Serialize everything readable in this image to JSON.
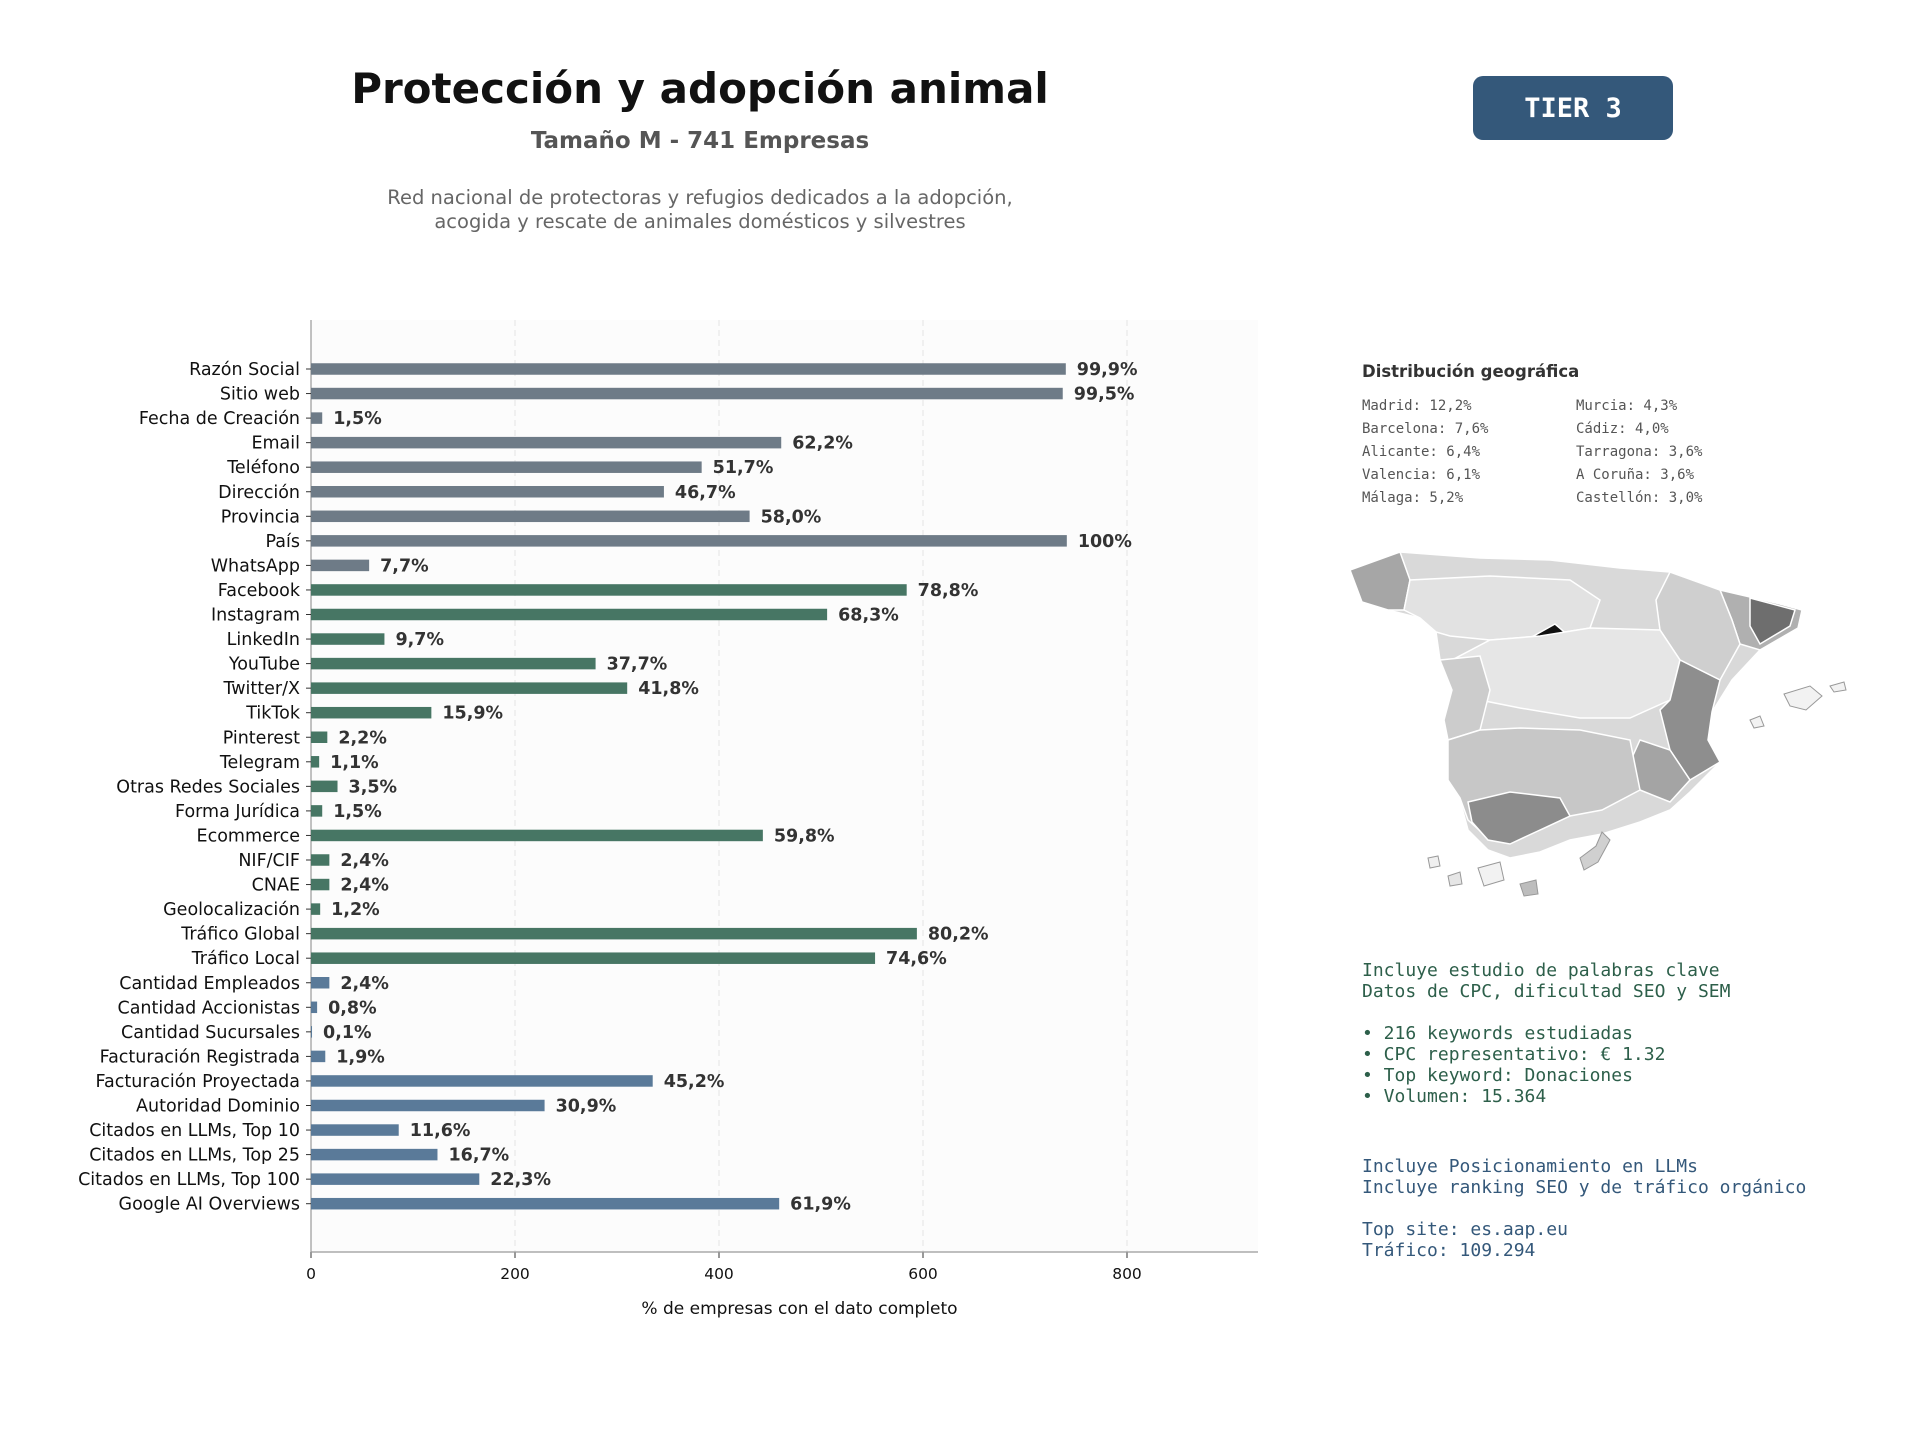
{
  "header": {
    "title": "Protección y adopción animal",
    "subtitle": "Tamaño M - 741 Empresas",
    "description_line1": "Red nacional de protectoras y refugios dedicados a la adopción,",
    "description_line2": "acogida y rescate de animales domésticos y silvestres",
    "tier": "TIER 3"
  },
  "colors": {
    "basic": "#6e7b87",
    "social": "#477664",
    "business": "#5a7a99",
    "tier_bg": "#34587a"
  },
  "chart_data": {
    "type": "bar",
    "orientation": "horizontal",
    "xlabel": "% de empresas con el dato completo",
    "xlim": [
      0,
      925
    ],
    "xticks": [
      0,
      200,
      400,
      600,
      800
    ],
    "grid": "vertical dashed",
    "categories": [
      "Razón Social",
      "Sitio web",
      "Fecha de Creación",
      "Email",
      "Teléfono",
      "Dirección",
      "Provincia",
      "País",
      "WhatsApp",
      "Facebook",
      "Instagram",
      "LinkedIn",
      "YouTube",
      "Twitter/X",
      "TikTok",
      "Pinterest",
      "Telegram",
      "Otras Redes Sociales",
      "Forma Jurídica",
      "Ecommerce",
      "NIF/CIF",
      "CNAE",
      "Geolocalización",
      "Tráfico Global",
      "Tráfico Local",
      "Cantidad Empleados",
      "Cantidad Accionistas",
      "Cantidad Sucursales",
      "Facturación Registrada",
      "Facturación Proyectada",
      "Autoridad Dominio",
      "Citados en LLMs, Top 10",
      "Citados en LLMs, Top 25",
      "Citados en LLMs, Top 100",
      "Google AI Overviews"
    ],
    "values": [
      740,
      737,
      11,
      461,
      383,
      346,
      430,
      741,
      57,
      584,
      506,
      72,
      279,
      310,
      118,
      16,
      8,
      26,
      11,
      443,
      18,
      18,
      9,
      594,
      553,
      18,
      6,
      1,
      14,
      335,
      229,
      86,
      124,
      165,
      459
    ],
    "labels": [
      "99,9%",
      "99,5%",
      "1,5%",
      "62,2%",
      "51,7%",
      "46,7%",
      "58,0%",
      "100%",
      "7,7%",
      "78,8%",
      "68,3%",
      "9,7%",
      "37,7%",
      "41,8%",
      "15,9%",
      "2,2%",
      "1,1%",
      "3,5%",
      "1,5%",
      "59,8%",
      "2,4%",
      "2,4%",
      "1,2%",
      "80,2%",
      "74,6%",
      "2,4%",
      "0,8%",
      "0,1%",
      "1,9%",
      "45,2%",
      "30,9%",
      "11,6%",
      "16,7%",
      "22,3%",
      "61,9%"
    ],
    "groups": [
      "basic",
      "basic",
      "basic",
      "basic",
      "basic",
      "basic",
      "basic",
      "basic",
      "basic",
      "social",
      "social",
      "social",
      "social",
      "social",
      "social",
      "social",
      "social",
      "social",
      "social",
      "social",
      "social",
      "social",
      "social",
      "social",
      "social",
      "business",
      "business",
      "business",
      "business",
      "business",
      "business",
      "business",
      "business",
      "business",
      "business"
    ]
  },
  "geo": {
    "title": "Distribución geográfica",
    "items": [
      "Madrid: 12,2%",
      "Murcia: 4,3%",
      "Barcelona: 7,6%",
      "Cádiz: 4,0%",
      "Alicante: 6,4%",
      "Tarragona: 3,6%",
      "Valencia: 6,1%",
      "A Coruña: 3,6%",
      "Málaga: 5,2%",
      "Castellón: 3,0%"
    ]
  },
  "seo": {
    "line1": "Incluye estudio de palabras clave",
    "line2": "Datos de CPC, dificultad SEO y SEM",
    "bullet1": "• 216 keywords estudiadas",
    "bullet2": "• CPC representativo: € 1.32",
    "bullet3": "• Top keyword: Donaciones",
    "bullet4": "• Volumen: 15.364"
  },
  "llm": {
    "line1": "Incluye Posicionamiento en LLMs",
    "line2": "Incluye ranking SEO y de tráfico orgánico",
    "line3": "Top site: es.aap.eu",
    "line4": "Tráfico: 109.294"
  }
}
